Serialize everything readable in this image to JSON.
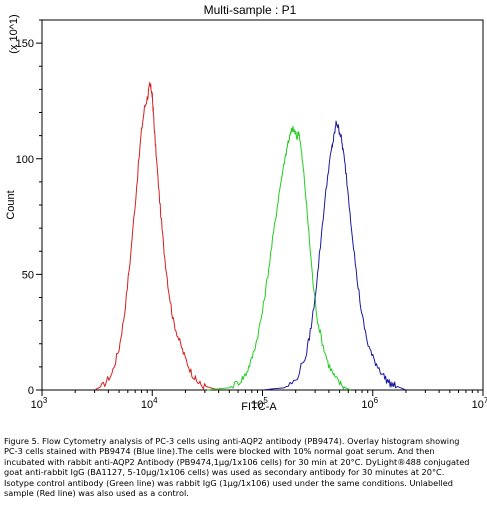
{
  "chart_data": {
    "type": "line",
    "title": "Multi-sample : P1",
    "xlabel": "FITC-A",
    "ylabel": "Count",
    "y_scale_note": "(x 10^1)",
    "x_scale": "log",
    "xlim": [
      1000,
      10000000
    ],
    "ylim": [
      0,
      160
    ],
    "x_ticks": [
      {
        "base": "10",
        "exp": "3",
        "value": 1000
      },
      {
        "base": "10",
        "exp": "4",
        "value": 10000
      },
      {
        "base": "10",
        "exp": "5",
        "value": 100000
      },
      {
        "base": "10",
        "exp": "6",
        "value": 1000000
      },
      {
        "base": "10",
        "exp": "7",
        "value": 10000000
      }
    ],
    "y_ticks": [
      {
        "label": "0",
        "value": 0
      },
      {
        "label": "50",
        "value": 50
      },
      {
        "label": "100",
        "value": 100
      },
      {
        "label": "150",
        "value": 150
      }
    ],
    "grid": false,
    "legend": "none",
    "series": [
      {
        "color": "#d42020",
        "x": [
          3000,
          3600,
          4300,
          5000,
          5600,
          6300,
          7100,
          7900,
          8500,
          9100,
          9500,
          9800,
          10000,
          10200,
          10500,
          11000,
          11800,
          12800,
          14100,
          15500,
          17400,
          19500,
          22400,
          25100,
          28200,
          33500,
          39800
        ],
        "y": [
          0,
          2,
          7,
          18,
          33,
          56,
          84,
          110,
          122,
          127,
          132,
          130,
          127,
          121,
          111,
          98,
          79,
          60,
          43,
          30,
          22,
          15,
          8,
          4,
          2,
          1,
          0
        ]
      },
      {
        "color": "#22cc22",
        "x": [
          31600,
          50100,
          63100,
          70800,
          79400,
          89100,
          100000,
          112000,
          126000,
          141000,
          158000,
          170000,
          178000,
          186000,
          195000,
          205000,
          214000,
          224000,
          240000,
          263000,
          288000,
          316000,
          355000,
          398000,
          447000,
          501000,
          562000,
          631000
        ],
        "y": [
          0,
          1,
          4,
          7,
          13,
          22,
          34,
          50,
          68,
          85,
          99,
          107,
          110,
          113,
          112,
          109,
          112,
          104,
          91,
          68,
          46,
          30,
          19,
          11,
          6,
          3,
          1,
          0
        ]
      },
      {
        "color": "#1a1aa0",
        "x": [
          100000,
          158000,
          200000,
          251000,
          282000,
          316000,
          355000,
          398000,
          427000,
          447000,
          468000,
          490000,
          513000,
          537000,
          575000,
          631000,
          708000,
          794000,
          891000,
          1000000,
          1120000,
          1260000,
          1410000,
          1580000,
          1780000,
          2000000
        ],
        "y": [
          0,
          1,
          4,
          16,
          30,
          50,
          75,
          96,
          105,
          110,
          116,
          113,
          110,
          104,
          93,
          74,
          51,
          33,
          21,
          14,
          10,
          6,
          3,
          2,
          1,
          0
        ]
      }
    ]
  },
  "caption": {
    "lines": [
      "Figure 5. Flow Cytometry analysis of PC-3 cells using anti-AQP2 antibody (PB9474). Overlay histogram showing",
      "PC-3 cells stained with PB9474 (Blue line).The cells were blocked with 10% normal goat serum. And then",
      "incubated with rabbit anti-AQP2 Antibody (PB9474,1μg/1x106 cells) for 30 min at 20°C. DyLight®488 conjugated",
      "goat anti-rabbit IgG (BA1127, 5-10μg/1x106 cells) was used as secondary antibody for 30 minutes at 20°C.",
      "Isotype control antibody (Green line) was rabbit IgG (1μg/1x106) used under the same conditions. Unlabelled",
      "sample (Red line) was also used as a control."
    ]
  }
}
